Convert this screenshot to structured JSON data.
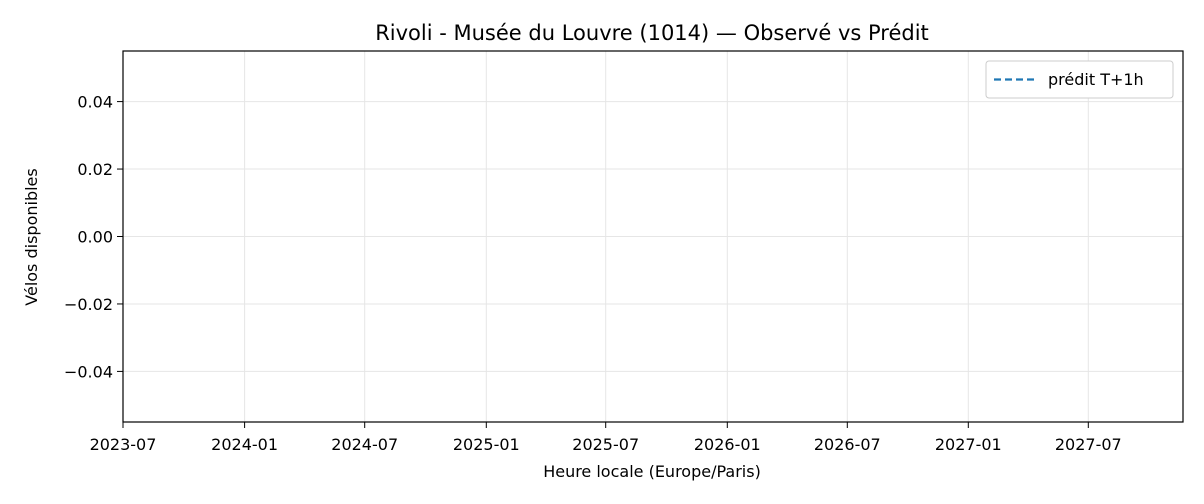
{
  "chart_data": {
    "type": "line",
    "title": "Rivoli - Musée du Louvre (1014) — Observé vs Prédit",
    "xlabel": "Heure locale (Europe/Paris)",
    "ylabel": "Vélos disponibles",
    "x_ticks": [
      "2023-07",
      "2024-01",
      "2024-07",
      "2025-01",
      "2025-07",
      "2026-01",
      "2026-07",
      "2027-01",
      "2027-07"
    ],
    "y_ticks": [
      "0.04",
      "0.02",
      "0.00",
      "−0.02",
      "−0.04"
    ],
    "y_tick_values": [
      0.04,
      0.02,
      0.0,
      -0.02,
      -0.04
    ],
    "xlim": [
      "2023-07",
      "2027-11"
    ],
    "ylim": [
      -0.055,
      0.055
    ],
    "grid": true,
    "legend_position": "top-right",
    "series": [
      {
        "name": "prédit T+1h",
        "line_style": "dashed",
        "color": "#1f77b4",
        "x": [],
        "y": []
      }
    ]
  }
}
